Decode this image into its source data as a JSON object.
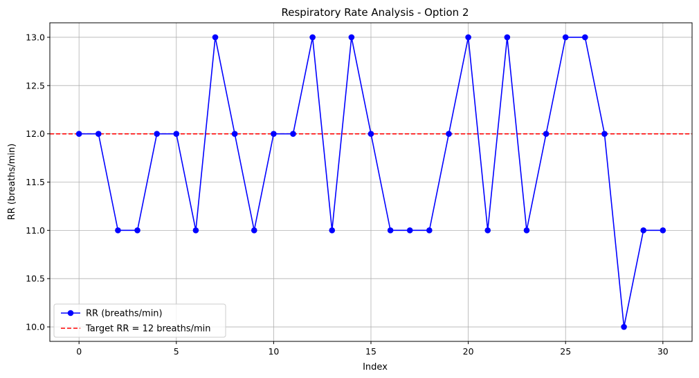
{
  "chart_data": {
    "type": "line",
    "title": "Respiratory Rate Analysis - Option 2",
    "xlabel": "Index",
    "ylabel": "RR (breaths/min)",
    "xlim": [
      -1.5,
      31.5
    ],
    "ylim": [
      9.85,
      13.15
    ],
    "xticks": [
      0,
      5,
      10,
      15,
      20,
      25,
      30
    ],
    "yticks": [
      10.0,
      10.5,
      11.0,
      11.5,
      12.0,
      12.5,
      13.0
    ],
    "ytick_labels": [
      "10.0",
      "10.5",
      "11.0",
      "11.5",
      "12.0",
      "12.5",
      "13.0"
    ],
    "grid": true,
    "legend_position": "lower-left",
    "series": [
      {
        "name": "RR (breaths/min)",
        "color": "#0000ff",
        "marker": "circle",
        "x": [
          0,
          1,
          2,
          3,
          4,
          5,
          6,
          7,
          8,
          9,
          10,
          11,
          12,
          13,
          14,
          15,
          16,
          17,
          18,
          19,
          20,
          21,
          22,
          23,
          24,
          25,
          26,
          27,
          28,
          29,
          30
        ],
        "values": [
          12,
          12,
          11,
          11,
          12,
          12,
          11,
          13,
          12,
          11,
          12,
          12,
          13,
          11,
          13,
          12,
          11,
          11,
          11,
          12,
          13,
          11,
          13,
          11,
          12,
          13,
          13,
          12,
          10,
          11,
          11
        ]
      }
    ],
    "reference_lines": [
      {
        "name": "Target RR = 12 breaths/min",
        "y": 12,
        "color": "#ff0000",
        "style": "dashed"
      }
    ]
  }
}
